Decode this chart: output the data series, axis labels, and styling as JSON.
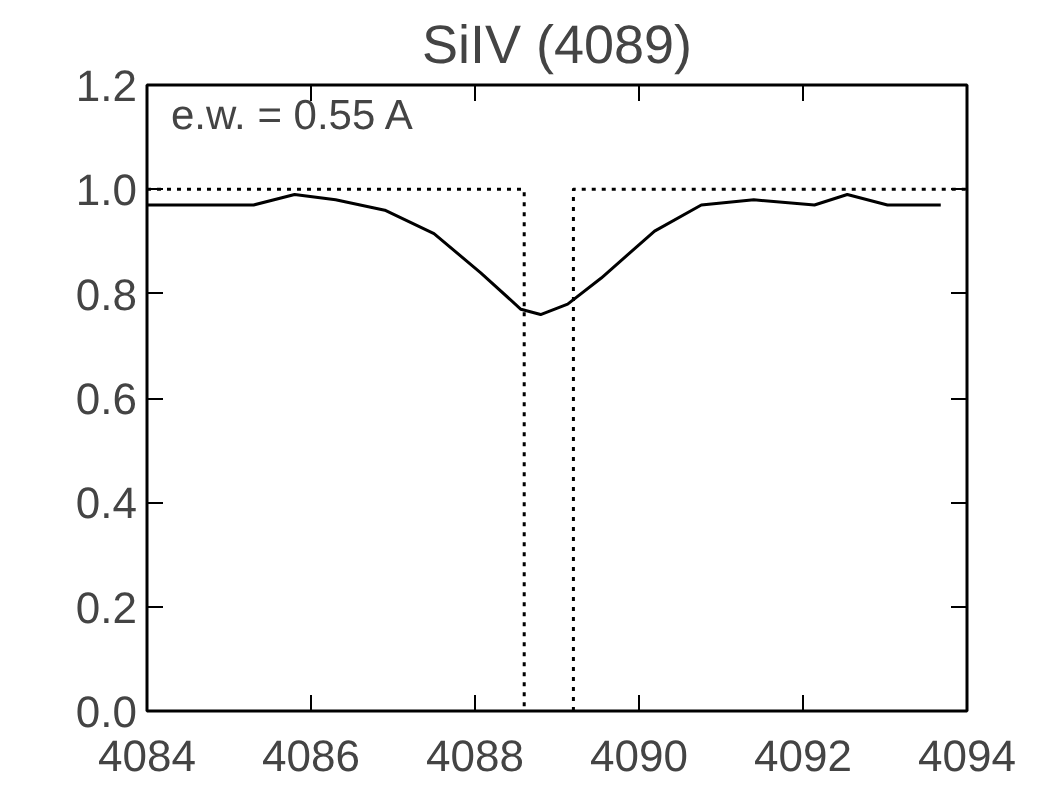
{
  "chart_data": {
    "type": "line",
    "title": "SiIV (4089)",
    "annotations": [
      "e.w. = 0.55 A"
    ],
    "xlim": [
      4084,
      4094
    ],
    "ylim": [
      0,
      1.2
    ],
    "xticks": [
      4084,
      4086,
      4088,
      4090,
      4092,
      4094
    ],
    "yticks": [
      {
        "value": 0,
        "label": "0.0"
      },
      {
        "value": 0.2,
        "label": "0.2"
      },
      {
        "value": 0.4,
        "label": "0.4"
      },
      {
        "value": 0.6,
        "label": "0.6"
      },
      {
        "value": 0.8,
        "label": "0.8"
      },
      {
        "value": 1.0,
        "label": "1.0"
      },
      {
        "value": 1.2,
        "label": "1.2"
      }
    ],
    "grid": false,
    "marker": "none",
    "series": [
      {
        "color": "#000000",
        "line_style": "solid",
        "x": [
          4084,
          4085.3,
          4085.8,
          4086.3,
          4086.9,
          4087.5,
          4088.07,
          4088.56,
          4088.8,
          4089.13,
          4089.54,
          4090.19,
          4090.76,
          4091.4,
          4092.14,
          4092.54,
          4093.03,
          4093.68
        ],
        "values": [
          0.97,
          0.97,
          0.99,
          0.98,
          0.96,
          0.915,
          0.84,
          0.77,
          0.76,
          0.78,
          0.83,
          0.92,
          0.97,
          0.98,
          0.97,
          0.99,
          0.97,
          0.97
        ]
      },
      {
        "color": "#000000",
        "line_style": "dotted",
        "x": [
          4084,
          4088.6,
          4088.6
        ],
        "values": [
          1.0,
          1.0,
          0
        ]
      },
      {
        "color": "#000000",
        "line_style": "dotted",
        "x": [
          4089.2,
          4089.2,
          4094
        ],
        "values": [
          0,
          1.0,
          1.0
        ]
      }
    ]
  }
}
